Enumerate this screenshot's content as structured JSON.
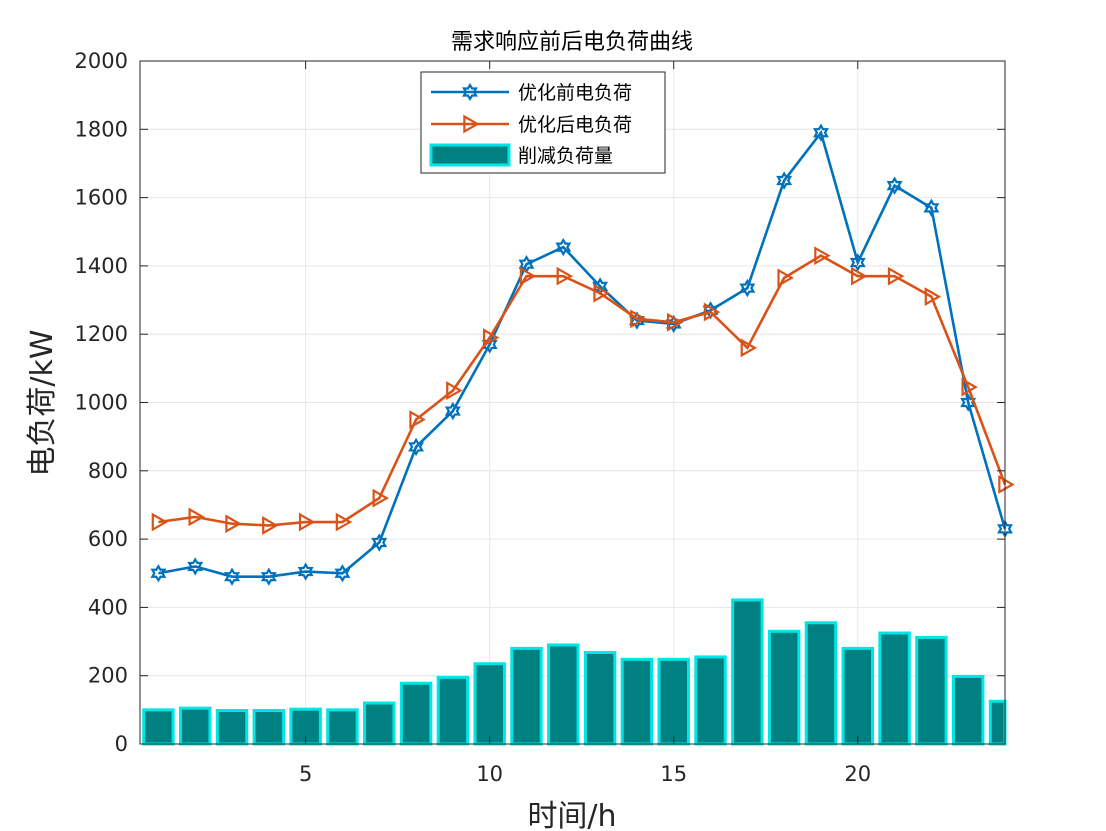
{
  "chart_data": {
    "type": "line",
    "title": "需求响应前后电负荷曲线",
    "xlabel": "时间/h",
    "ylabel": "电负荷/kW",
    "xlim": [
      0.5,
      24.0
    ],
    "ylim": [
      0,
      2000
    ],
    "xticks": [
      5,
      10,
      15,
      20
    ],
    "yticks": [
      0,
      200,
      400,
      600,
      800,
      1000,
      1200,
      1400,
      1600,
      1800,
      2000
    ],
    "grid": true,
    "legend_position": "top-center",
    "x": [
      1,
      2,
      3,
      4,
      5,
      6,
      7,
      8,
      9,
      10,
      11,
      12,
      13,
      14,
      15,
      16,
      17,
      18,
      19,
      20,
      21,
      22,
      23,
      24
    ],
    "series": [
      {
        "name": "优化前电负荷",
        "kind": "line",
        "marker": "hexagram",
        "color": "#0072bd",
        "values": [
          500,
          520,
          490,
          490,
          505,
          500,
          590,
          870,
          975,
          1170,
          1405,
          1455,
          1340,
          1240,
          1230,
          1270,
          1335,
          1650,
          1790,
          1410,
          1635,
          1570,
          1000,
          630
        ]
      },
      {
        "name": "优化后电负荷",
        "kind": "line",
        "marker": "triangle-right",
        "color": "#d95319",
        "values": [
          650,
          665,
          645,
          640,
          650,
          650,
          720,
          950,
          1035,
          1190,
          1370,
          1370,
          1320,
          1245,
          1235,
          1265,
          1160,
          1365,
          1430,
          1370,
          1370,
          1310,
          1045,
          760
        ]
      },
      {
        "name": "削减负荷量",
        "kind": "bar",
        "color": "#008080",
        "edge_color": "#00e5e5",
        "values": [
          100,
          105,
          98,
          98,
          102,
          100,
          120,
          178,
          195,
          235,
          280,
          290,
          268,
          248,
          248,
          255,
          422,
          330,
          355,
          280,
          325,
          312,
          198,
          125
        ]
      }
    ]
  }
}
